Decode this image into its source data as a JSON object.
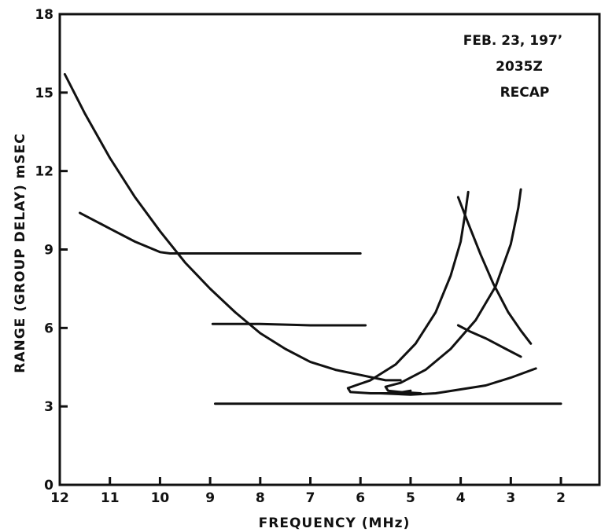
{
  "chart_data": {
    "type": "line",
    "title": "",
    "xlabel": "FREQUENCY (MHz)",
    "ylabel": "RANGE (GROUP DELAY) mSEC",
    "xlim": [
      12,
      1.2
    ],
    "ylim": [
      0,
      18
    ],
    "x_reversed": true,
    "x_ticks": [
      12,
      11,
      10,
      9,
      8,
      7,
      6,
      5,
      4,
      3,
      2
    ],
    "y_ticks": [
      0,
      3,
      6,
      9,
      12,
      15,
      18
    ],
    "grid": false,
    "annotations": [
      "FEB. 23, 197’",
      "2035Z",
      "RECAP"
    ],
    "series": [
      {
        "points": [
          [
            11.9,
            15.7
          ],
          [
            11.5,
            14.2
          ],
          [
            11.0,
            12.5
          ],
          [
            10.5,
            11.0
          ],
          [
            10.0,
            9.7
          ],
          [
            9.5,
            8.5
          ],
          [
            9.0,
            7.5
          ],
          [
            8.5,
            6.6
          ],
          [
            8.0,
            5.8
          ],
          [
            7.5,
            5.2
          ],
          [
            7.0,
            4.7
          ],
          [
            6.5,
            4.4
          ],
          [
            6.0,
            4.2
          ],
          [
            5.5,
            4.0
          ],
          [
            5.2,
            4.0
          ]
        ]
      },
      {
        "points": [
          [
            11.6,
            10.4
          ],
          [
            11.0,
            9.8
          ],
          [
            10.5,
            9.3
          ],
          [
            10.0,
            8.9
          ],
          [
            9.8,
            8.85
          ],
          [
            9.0,
            8.85
          ],
          [
            8.0,
            8.85
          ],
          [
            7.0,
            8.85
          ],
          [
            6.0,
            8.85
          ]
        ]
      },
      {
        "points": [
          [
            8.95,
            6.15
          ],
          [
            8.0,
            6.15
          ],
          [
            7.0,
            6.1
          ],
          [
            5.9,
            6.1
          ]
        ]
      },
      {
        "points": [
          [
            8.9,
            3.1
          ],
          [
            7.0,
            3.1
          ],
          [
            5.0,
            3.1
          ],
          [
            3.0,
            3.1
          ],
          [
            2.0,
            3.1
          ]
        ]
      },
      {
        "points": [
          [
            3.85,
            11.2
          ],
          [
            3.9,
            10.5
          ],
          [
            4.0,
            9.3
          ],
          [
            4.2,
            8.0
          ],
          [
            4.5,
            6.6
          ],
          [
            4.9,
            5.4
          ],
          [
            5.3,
            4.6
          ],
          [
            5.8,
            4.0
          ],
          [
            6.1,
            3.8
          ],
          [
            6.25,
            3.7
          ],
          [
            6.2,
            3.55
          ],
          [
            5.8,
            3.5
          ],
          [
            5.3,
            3.5
          ],
          [
            5.0,
            3.6
          ]
        ]
      },
      {
        "points": [
          [
            2.8,
            11.3
          ],
          [
            2.85,
            10.6
          ],
          [
            3.0,
            9.2
          ],
          [
            3.3,
            7.6
          ],
          [
            3.7,
            6.3
          ],
          [
            4.2,
            5.2
          ],
          [
            4.7,
            4.4
          ],
          [
            5.2,
            3.9
          ],
          [
            5.5,
            3.75
          ],
          [
            5.45,
            3.6
          ],
          [
            5.2,
            3.55
          ],
          [
            4.8,
            3.5
          ]
        ]
      },
      {
        "points": [
          [
            5.6,
            3.5
          ],
          [
            5.0,
            3.45
          ],
          [
            4.5,
            3.5
          ],
          [
            4.0,
            3.65
          ],
          [
            3.5,
            3.8
          ],
          [
            3.0,
            4.1
          ],
          [
            2.5,
            4.45
          ]
        ]
      },
      {
        "points": [
          [
            4.05,
            11.0
          ],
          [
            3.85,
            10.0
          ],
          [
            3.6,
            8.8
          ],
          [
            3.35,
            7.7
          ],
          [
            3.05,
            6.6
          ],
          [
            2.8,
            5.9
          ],
          [
            2.6,
            5.4
          ]
        ]
      },
      {
        "points": [
          [
            4.05,
            6.1
          ],
          [
            3.8,
            5.85
          ],
          [
            3.5,
            5.6
          ],
          [
            3.1,
            5.2
          ],
          [
            2.8,
            4.9
          ]
        ]
      }
    ]
  }
}
